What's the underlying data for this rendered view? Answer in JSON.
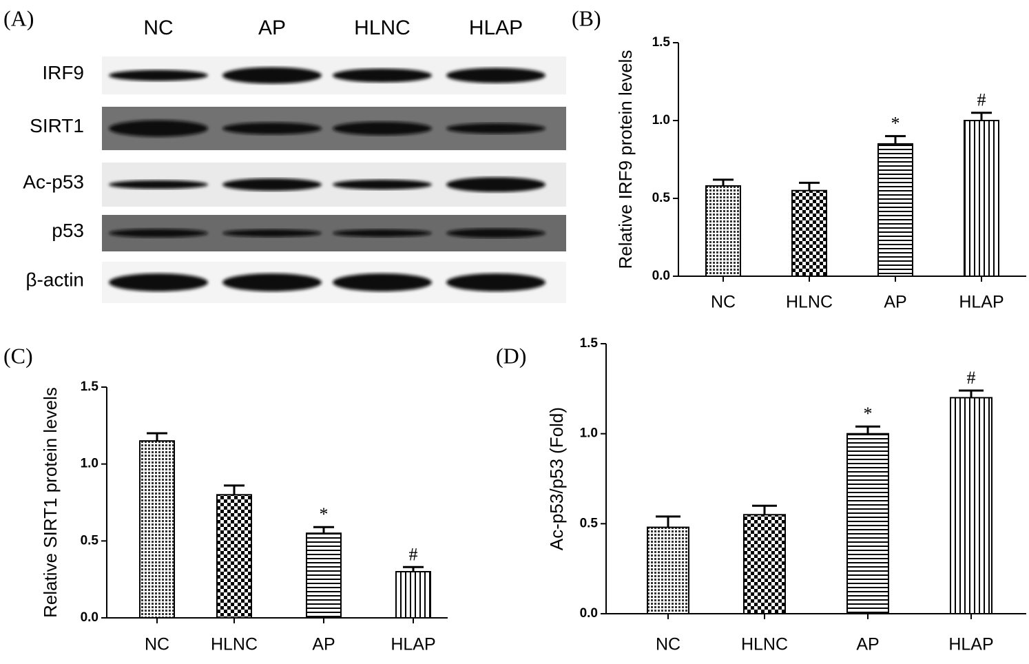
{
  "blot": {
    "panel": "(A)",
    "lanes": [
      "NC",
      "AP",
      "HLNC",
      "HLAP"
    ],
    "rows": [
      "IRF9",
      "SIRT1",
      "Ac-p53",
      "p53",
      "β-actin"
    ]
  },
  "chart_data": [
    {
      "type": "bar",
      "panel": "(B)",
      "ylabel": "Relative IRF9 protein levels",
      "color": "#000000",
      "categories": [
        "NC",
        "HLNC",
        "AP",
        "HLAP"
      ],
      "values": [
        0.58,
        0.55,
        0.85,
        1.0
      ],
      "errors": [
        0.04,
        0.05,
        0.05,
        0.05
      ],
      "annotations": [
        null,
        null,
        "*",
        "#"
      ],
      "ylim": [
        0,
        1.5
      ],
      "yticks": [
        {
          "value": 0,
          "label": "0.0"
        },
        0.5,
        {
          "value": 1,
          "label": "1.0"
        },
        1.5
      ]
    },
    {
      "type": "bar",
      "panel": "(C)",
      "ylabel": "Relative SIRT1 protein levels",
      "color": "#000000",
      "categories": [
        "NC",
        "HLNC",
        "AP",
        "HLAP"
      ],
      "values": [
        1.15,
        0.8,
        0.55,
        0.3
      ],
      "errors": [
        0.05,
        0.06,
        0.04,
        0.03
      ],
      "annotations": [
        null,
        null,
        "*",
        "#"
      ],
      "ylim": [
        0,
        1.5
      ],
      "yticks": [
        {
          "value": 0,
          "label": "0.0"
        },
        0.5,
        {
          "value": 1,
          "label": "1.0"
        },
        1.5
      ]
    },
    {
      "type": "bar",
      "panel": "(D)",
      "ylabel": "Ac-p53/p53 (Fold)",
      "color": "#000000",
      "categories": [
        "NC",
        "HLNC",
        "AP",
        "HLAP"
      ],
      "values": [
        0.48,
        0.55,
        1.0,
        1.2
      ],
      "errors": [
        0.06,
        0.05,
        0.04,
        0.04
      ],
      "annotations": [
        null,
        null,
        "*",
        "#"
      ],
      "ylim": [
        0,
        1.5
      ],
      "yticks": [
        {
          "value": 0,
          "label": "0.0"
        },
        0.5,
        {
          "value": 1,
          "label": "1.0"
        },
        1.5
      ]
    }
  ]
}
